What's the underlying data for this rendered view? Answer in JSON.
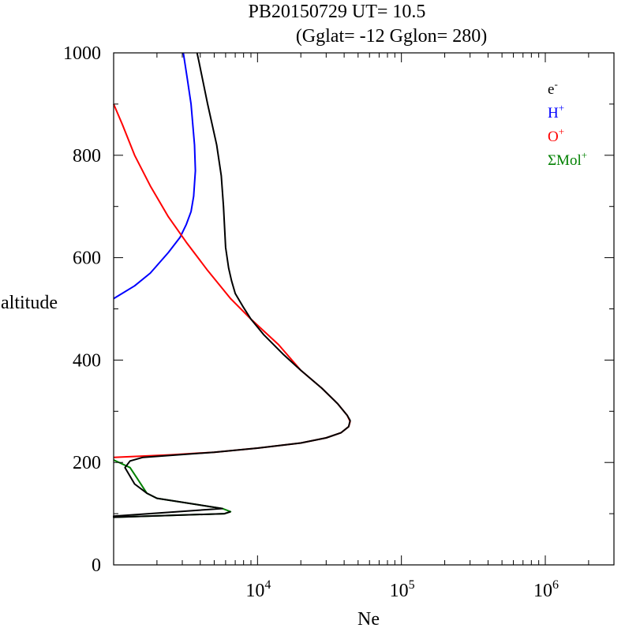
{
  "chart_data": {
    "type": "line",
    "title": "PB20150729   UT=  10.5",
    "subtitle": "(Gglat= -12   Gglon=  280)",
    "xlabel": "Ne",
    "ylabel": "altitude",
    "x_scale": "log",
    "xlim": [
      1000,
      3000000
    ],
    "ylim": [
      0,
      1000
    ],
    "x_tick_labels": [
      {
        "value": 10000,
        "base": "10",
        "exp": "4"
      },
      {
        "value": 100000,
        "base": "10",
        "exp": "5"
      },
      {
        "value": 1000000,
        "base": "10",
        "exp": "6"
      }
    ],
    "y_ticks": [
      0,
      200,
      400,
      600,
      800,
      1000
    ],
    "legend_position": "top-right",
    "series": [
      {
        "name": "e-",
        "legend_base": "e",
        "legend_sup": "-",
        "color": "#000000",
        "points": [
          [
            6500,
            104
          ],
          [
            5900,
            100
          ],
          [
            1000,
            93
          ],
          [
            1000,
            95
          ],
          [
            5700,
            110
          ],
          [
            2000,
            130
          ],
          [
            1700,
            140
          ],
          [
            1400,
            158
          ],
          [
            1200,
            190
          ],
          [
            1300,
            203
          ],
          [
            1600,
            210
          ],
          [
            5000,
            220
          ],
          [
            10000,
            228
          ],
          [
            20000,
            238
          ],
          [
            30000,
            248
          ],
          [
            38000,
            258
          ],
          [
            43000,
            270
          ],
          [
            44000,
            282
          ],
          [
            42000,
            292
          ],
          [
            36000,
            315
          ],
          [
            28000,
            345
          ],
          [
            20000,
            380
          ],
          [
            15000,
            412
          ],
          [
            11000,
            450
          ],
          [
            9000,
            480
          ],
          [
            7900,
            505
          ],
          [
            7000,
            530
          ],
          [
            6600,
            555
          ],
          [
            6300,
            580
          ],
          [
            6000,
            620
          ],
          [
            5800,
            700
          ],
          [
            5600,
            760
          ],
          [
            5200,
            820
          ],
          [
            4500,
            900
          ],
          [
            3900,
            985
          ],
          [
            3800,
            1000
          ]
        ]
      },
      {
        "name": "H+",
        "legend_base": "H",
        "legend_sup": "+",
        "color": "#0000ff",
        "points": [
          [
            1000,
            520
          ],
          [
            1400,
            545
          ],
          [
            1800,
            570
          ],
          [
            2400,
            610
          ],
          [
            2900,
            640
          ],
          [
            3200,
            665
          ],
          [
            3450,
            690
          ],
          [
            3600,
            720
          ],
          [
            3700,
            770
          ],
          [
            3650,
            820
          ],
          [
            3450,
            900
          ],
          [
            3250,
            950
          ],
          [
            3050,
            1000
          ]
        ]
      },
      {
        "name": "O+",
        "legend_base": "O",
        "legend_sup": "+",
        "color": "#ff0000",
        "points": [
          [
            1000,
            900
          ],
          [
            1150,
            860
          ],
          [
            1400,
            800
          ],
          [
            1800,
            740
          ],
          [
            2400,
            680
          ],
          [
            3200,
            630
          ],
          [
            4500,
            575
          ],
          [
            6500,
            520
          ],
          [
            9000,
            480
          ],
          [
            14000,
            430
          ],
          [
            20000,
            380
          ],
          [
            28000,
            345
          ],
          [
            36000,
            315
          ],
          [
            42000,
            292
          ],
          [
            44000,
            280
          ],
          [
            43000,
            270
          ],
          [
            38000,
            258
          ],
          [
            30000,
            248
          ],
          [
            20000,
            238
          ],
          [
            10000,
            228
          ],
          [
            5000,
            220
          ],
          [
            2500,
            215
          ],
          [
            1000,
            210
          ]
        ]
      },
      {
        "name": "ΣMol+",
        "legend_base": "ΣMol",
        "legend_sup": "+",
        "color": "#008000",
        "points": [
          [
            1000,
            205
          ],
          [
            1300,
            190
          ],
          [
            1450,
            170
          ],
          [
            1700,
            140
          ],
          [
            2000,
            130
          ],
          [
            5700,
            110
          ],
          [
            6500,
            104
          ],
          [
            5900,
            100
          ],
          [
            1000,
            93
          ]
        ]
      }
    ]
  }
}
